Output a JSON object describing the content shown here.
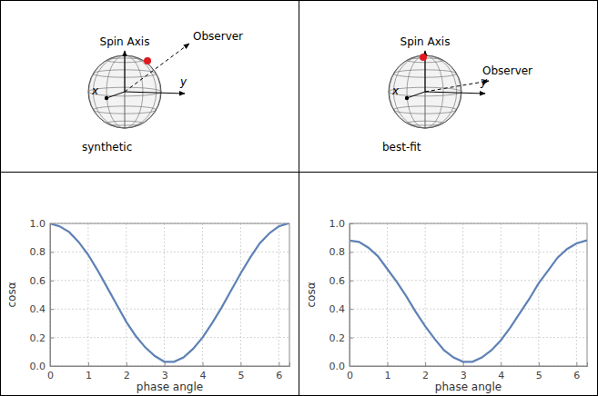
{
  "chart_data": [
    {
      "type": "line",
      "xlabel": "phase angle",
      "ylabel": "cosα",
      "color": "#5e81b5",
      "grid": true,
      "xlim": [
        0,
        6.28
      ],
      "ylim": [
        0,
        1
      ],
      "xticks": [
        0,
        1,
        2,
        3,
        4,
        5,
        6
      ],
      "yticks": [
        {
          "value": 0,
          "label": "0.0"
        },
        {
          "value": 0.2,
          "label": "0.2"
        },
        {
          "value": 0.4,
          "label": "0.4"
        },
        {
          "value": 0.6,
          "label": "0.6"
        },
        {
          "value": 0.8,
          "label": "0.8"
        },
        {
          "value": 1,
          "label": "1.0"
        }
      ],
      "x": [
        0,
        0.25,
        0.5,
        0.75,
        1,
        1.25,
        1.5,
        1.75,
        2,
        2.25,
        2.5,
        2.75,
        3,
        3.25,
        3.5,
        3.75,
        4,
        4.25,
        4.5,
        4.75,
        5,
        5.25,
        5.5,
        5.75,
        6,
        6.25,
        6.28
      ],
      "values": [
        1.0,
        0.98,
        0.94,
        0.87,
        0.78,
        0.67,
        0.55,
        0.43,
        0.31,
        0.21,
        0.13,
        0.07,
        0.03,
        0.03,
        0.06,
        0.12,
        0.2,
        0.3,
        0.41,
        0.53,
        0.65,
        0.76,
        0.86,
        0.93,
        0.98,
        1.0,
        1.0
      ]
    },
    {
      "type": "line",
      "xlabel": "phase angle",
      "ylabel": "cosα",
      "color": "#5e81b5",
      "grid": true,
      "xlim": [
        0,
        6.28
      ],
      "ylim": [
        0,
        1
      ],
      "xticks": [
        0,
        1,
        2,
        3,
        4,
        5,
        6
      ],
      "yticks": [
        {
          "value": 0,
          "label": "0.0"
        },
        {
          "value": 0.2,
          "label": "0.2"
        },
        {
          "value": 0.4,
          "label": "0.4"
        },
        {
          "value": 0.6,
          "label": "0.6"
        },
        {
          "value": 0.8,
          "label": "0.8"
        },
        {
          "value": 1,
          "label": "1.0"
        }
      ],
      "x": [
        0,
        0.25,
        0.5,
        0.75,
        1,
        1.25,
        1.5,
        1.75,
        2,
        2.25,
        2.5,
        2.75,
        3,
        3.25,
        3.5,
        3.75,
        4,
        4.25,
        4.5,
        4.75,
        5,
        5.25,
        5.5,
        5.75,
        6,
        6.25,
        6.28
      ],
      "values": [
        0.88,
        0.87,
        0.83,
        0.77,
        0.68,
        0.59,
        0.49,
        0.38,
        0.28,
        0.19,
        0.11,
        0.06,
        0.03,
        0.03,
        0.06,
        0.11,
        0.18,
        0.27,
        0.37,
        0.47,
        0.58,
        0.67,
        0.76,
        0.82,
        0.86,
        0.88,
        0.88
      ]
    }
  ],
  "diagrams": [
    {
      "caption": "synthetic",
      "spin_axis": "Spin Axis",
      "observer": "Observer",
      "x_axis": "x",
      "y_axis": "y"
    },
    {
      "caption": "best-fit",
      "spin_axis": "Spin Axis",
      "observer": "Observer",
      "x_axis": "x",
      "y_axis": "y"
    }
  ]
}
